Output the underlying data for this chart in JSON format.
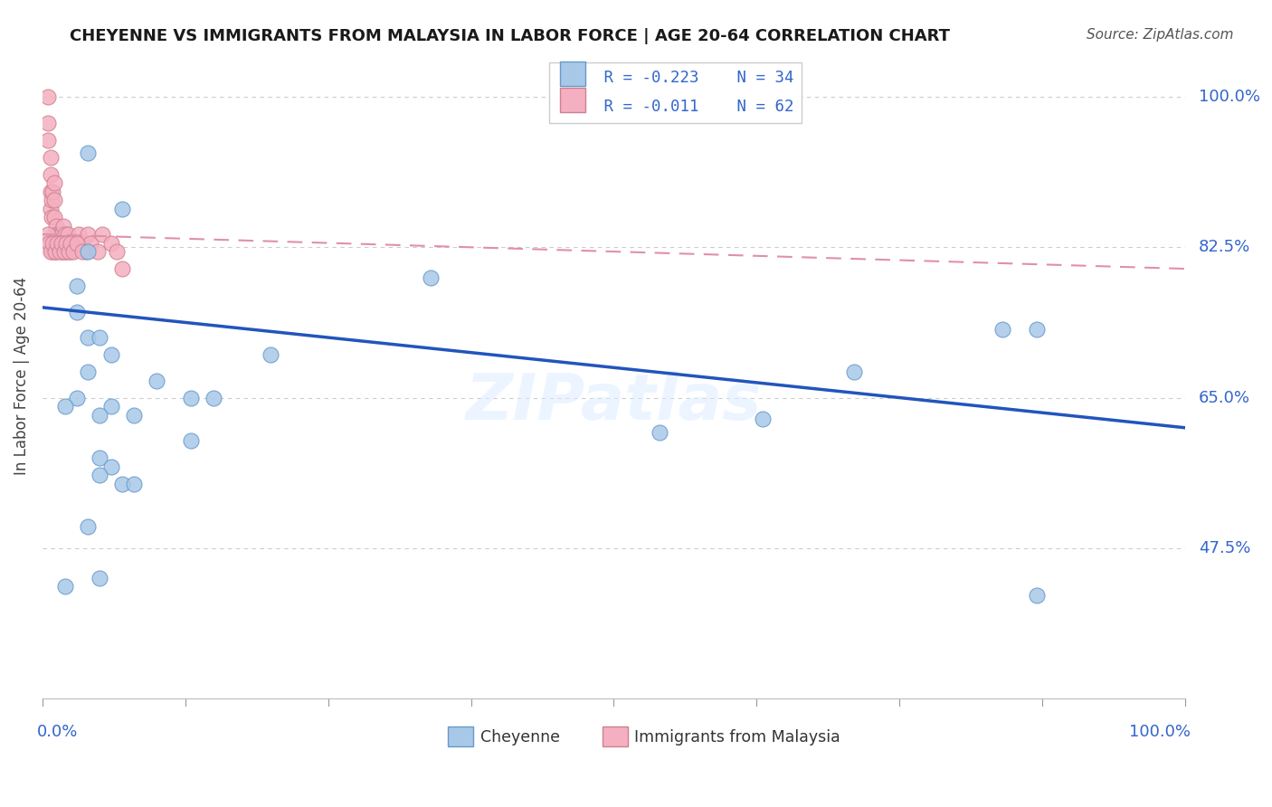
{
  "title": "CHEYENNE VS IMMIGRANTS FROM MALAYSIA IN LABOR FORCE | AGE 20-64 CORRELATION CHART",
  "source": "Source: ZipAtlas.com",
  "ylabel": "In Labor Force | Age 20-64",
  "legend_label1": "Cheyenne",
  "legend_label2": "Immigrants from Malaysia",
  "r1": -0.223,
  "n1": 34,
  "r2": -0.011,
  "n2": 62,
  "xlim": [
    0,
    1.0
  ],
  "ylim": [
    0.3,
    1.05
  ],
  "ytick_values": [
    1.0,
    0.825,
    0.65,
    0.475
  ],
  "ytick_labels": [
    "100.0%",
    "82.5%",
    "65.0%",
    "47.5%"
  ],
  "gridline_color": "#cccccc",
  "background_color": "#ffffff",
  "color_blue": "#a8c8e8",
  "color_pink": "#f4b0c0",
  "trendline_blue": "#2255bb",
  "trendline_pink": "#e090a8",
  "text_color_blue": "#3366cc",
  "watermark": "ZIPatlas",
  "cheyenne_x": [
    0.04,
    0.07,
    0.04,
    0.03,
    0.03,
    0.04,
    0.05,
    0.06,
    0.04,
    0.03,
    0.02,
    0.06,
    0.05,
    0.08,
    0.13,
    0.15,
    0.2,
    0.34,
    0.54,
    0.63,
    0.71,
    0.84,
    0.87,
    0.87,
    0.05,
    0.06,
    0.07,
    0.08,
    0.1,
    0.13,
    0.05,
    0.04,
    0.05,
    0.02
  ],
  "cheyenne_y": [
    0.935,
    0.87,
    0.82,
    0.78,
    0.75,
    0.72,
    0.72,
    0.7,
    0.68,
    0.65,
    0.64,
    0.64,
    0.63,
    0.63,
    0.65,
    0.65,
    0.7,
    0.79,
    0.61,
    0.625,
    0.68,
    0.73,
    0.73,
    0.42,
    0.58,
    0.57,
    0.55,
    0.55,
    0.67,
    0.6,
    0.56,
    0.5,
    0.44,
    0.43
  ],
  "malaysia_x": [
    0.005,
    0.005,
    0.005,
    0.007,
    0.007,
    0.007,
    0.007,
    0.008,
    0.008,
    0.009,
    0.01,
    0.01,
    0.01,
    0.01,
    0.01,
    0.012,
    0.013,
    0.013,
    0.015,
    0.015,
    0.017,
    0.018,
    0.018,
    0.02,
    0.02,
    0.022,
    0.022,
    0.025,
    0.025,
    0.03,
    0.032,
    0.035,
    0.038,
    0.04,
    0.042,
    0.048,
    0.052,
    0.06,
    0.065,
    0.07,
    0.008,
    0.01,
    0.012,
    0.014,
    0.016,
    0.018,
    0.02,
    0.005,
    0.006,
    0.007,
    0.009,
    0.011,
    0.013,
    0.015,
    0.017,
    0.019,
    0.021,
    0.023,
    0.025,
    0.027,
    0.03,
    0.035
  ],
  "malaysia_y": [
    1.0,
    0.97,
    0.95,
    0.93,
    0.91,
    0.89,
    0.87,
    0.86,
    0.88,
    0.89,
    0.9,
    0.88,
    0.86,
    0.84,
    0.82,
    0.85,
    0.84,
    0.83,
    0.84,
    0.83,
    0.84,
    0.85,
    0.82,
    0.84,
    0.83,
    0.84,
    0.82,
    0.83,
    0.82,
    0.83,
    0.84,
    0.83,
    0.82,
    0.84,
    0.83,
    0.82,
    0.84,
    0.83,
    0.82,
    0.8,
    0.82,
    0.83,
    0.82,
    0.83,
    0.82,
    0.83,
    0.82,
    0.84,
    0.83,
    0.82,
    0.83,
    0.82,
    0.83,
    0.82,
    0.83,
    0.82,
    0.83,
    0.82,
    0.83,
    0.82,
    0.83,
    0.82
  ],
  "blue_trend_x": [
    0.0,
    1.0
  ],
  "blue_trend_y": [
    0.755,
    0.615
  ],
  "pink_trend_x": [
    0.0,
    1.0
  ],
  "pink_trend_y": [
    0.84,
    0.8
  ]
}
